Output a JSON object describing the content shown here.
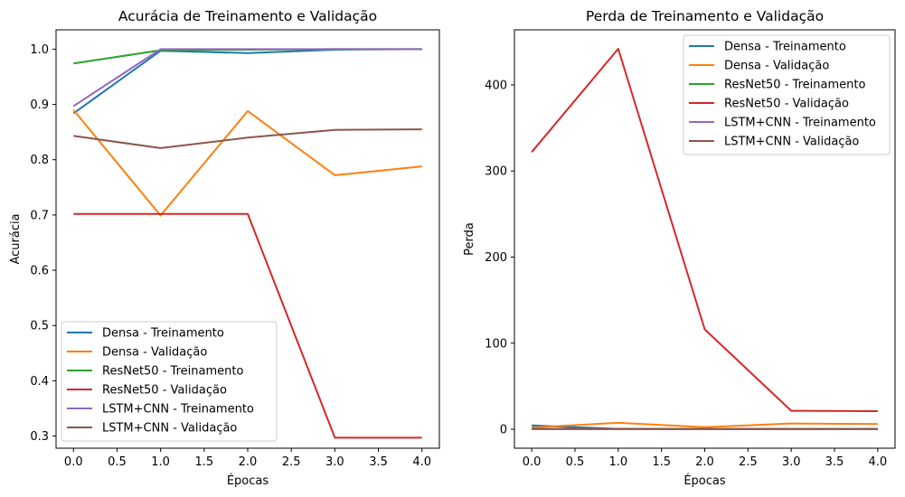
{
  "chart_data": [
    {
      "type": "line",
      "title": "Acurácia de Treinamento e Validação",
      "xlabel": "Épocas",
      "ylabel": "Acurácia",
      "x": [
        0,
        1,
        2,
        3,
        4
      ],
      "xlim": [
        -0.2,
        4.2
      ],
      "ylim": [
        0.278,
        1.035
      ],
      "xticks": [
        0.0,
        0.5,
        1.0,
        1.5,
        2.0,
        2.5,
        3.0,
        3.5,
        4.0
      ],
      "xtick_labels": [
        "0.0",
        "0.5",
        "1.0",
        "1.5",
        "2.0",
        "2.5",
        "3.0",
        "3.5",
        "4.0"
      ],
      "yticks": [
        0.3,
        0.4,
        0.5,
        0.6,
        0.7,
        0.8,
        0.9,
        1.0
      ],
      "ytick_labels": [
        "0.3",
        "0.4",
        "0.5",
        "0.6",
        "0.7",
        "0.8",
        "0.9",
        "1.0"
      ],
      "grid": false,
      "legend_position": "lower-left",
      "series": [
        {
          "name": "Densa - Treinamento",
          "color": "#1f77b4",
          "values": [
            0.884,
            0.997,
            0.993,
            0.999,
            1.0
          ]
        },
        {
          "name": "Densa - Validação",
          "color": "#ff7f0e",
          "values": [
            0.89,
            0.699,
            0.888,
            0.772,
            0.788
          ]
        },
        {
          "name": "ResNet50 - Treinamento",
          "color": "#2ca02c",
          "values": [
            0.974,
            0.998,
            0.999,
            1.0,
            1.0
          ]
        },
        {
          "name": "ResNet50 - Validação",
          "color": "#d62728",
          "values": [
            0.702,
            0.702,
            0.702,
            0.297,
            0.297
          ]
        },
        {
          "name": "LSTM+CNN - Treinamento",
          "color": "#9467bd",
          "values": [
            0.897,
            1.0,
            1.0,
            1.0,
            1.0
          ]
        },
        {
          "name": "LSTM+CNN - Validação",
          "color": "#8c564b",
          "values": [
            0.843,
            0.821,
            0.84,
            0.854,
            0.855
          ]
        }
      ]
    },
    {
      "type": "line",
      "title": "Perda de Treinamento e Validação",
      "xlabel": "Épocas",
      "ylabel": "Perda",
      "x": [
        0,
        1,
        2,
        3,
        4
      ],
      "xlim": [
        -0.2,
        4.2
      ],
      "ylim": [
        -22,
        464
      ],
      "xticks": [
        0.0,
        0.5,
        1.0,
        1.5,
        2.0,
        2.5,
        3.0,
        3.5,
        4.0
      ],
      "xtick_labels": [
        "0.0",
        "0.5",
        "1.0",
        "1.5",
        "2.0",
        "2.5",
        "3.0",
        "3.5",
        "4.0"
      ],
      "yticks": [
        0,
        100,
        200,
        300,
        400
      ],
      "ytick_labels": [
        "0",
        "100",
        "200",
        "300",
        "400"
      ],
      "grid": false,
      "legend_position": "upper-right",
      "series": [
        {
          "name": "Densa - Treinamento",
          "color": "#1f77b4",
          "values": [
            4.5,
            0.5,
            0.4,
            0.3,
            0.3
          ]
        },
        {
          "name": "Densa - Validação",
          "color": "#ff7f0e",
          "values": [
            2.0,
            7.5,
            2.5,
            6.8,
            6.0
          ]
        },
        {
          "name": "ResNet50 - Treinamento",
          "color": "#2ca02c",
          "values": [
            0.3,
            0.1,
            0.1,
            0.1,
            0.1
          ]
        },
        {
          "name": "ResNet50 - Validação",
          "color": "#d62728",
          "values": [
            322,
            442,
            116,
            21.5,
            21.0
          ]
        },
        {
          "name": "LSTM+CNN - Treinamento",
          "color": "#9467bd",
          "values": [
            0.4,
            0.1,
            0.1,
            0.1,
            0.1
          ]
        },
        {
          "name": "LSTM+CNN - Validação",
          "color": "#8c564b",
          "values": [
            0.5,
            0.6,
            0.5,
            0.5,
            0.5
          ]
        }
      ]
    }
  ]
}
